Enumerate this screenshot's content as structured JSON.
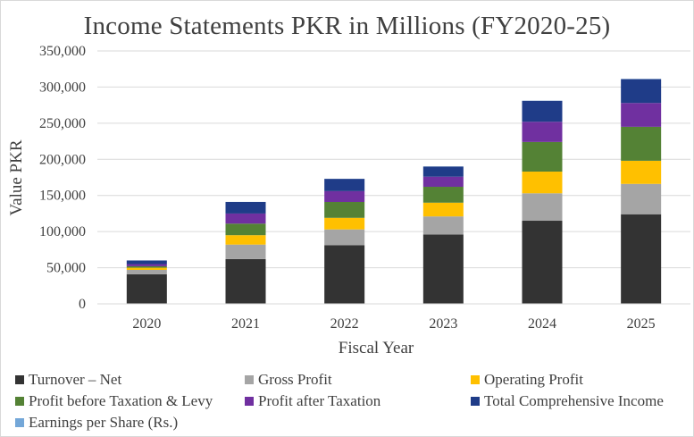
{
  "chart_data": {
    "type": "bar",
    "stacked": true,
    "title": "Income Statements PKR in Millions (FY2020-25)",
    "xlabel": "Fiscal Year",
    "ylabel": "Value PKR",
    "ylim": [
      0,
      350000
    ],
    "yticks": [
      0,
      50000,
      100000,
      150000,
      200000,
      250000,
      300000,
      350000
    ],
    "ytick_labels": [
      "0",
      "50,000",
      "100,000",
      "150,000",
      "200,000",
      "250,000",
      "300,000",
      "350,000"
    ],
    "grid": true,
    "legend_position": "bottom",
    "categories": [
      "2020",
      "2021",
      "2022",
      "2023",
      "2024",
      "2025"
    ],
    "series": [
      {
        "name": "Turnover – Net",
        "color": "#333333",
        "values": [
          41000,
          62000,
          81000,
          96000,
          115000,
          124000
        ]
      },
      {
        "name": "Gross Profit",
        "color": "#a5a5a5",
        "values": [
          6000,
          20000,
          22000,
          25000,
          38000,
          42000
        ]
      },
      {
        "name": "Operating Profit",
        "color": "#ffc000",
        "values": [
          3000,
          13000,
          16000,
          19000,
          30000,
          32000
        ]
      },
      {
        "name": "Profit before Taxation & Levy",
        "color": "#548235",
        "values": [
          2000,
          16000,
          22000,
          22000,
          41000,
          47000
        ]
      },
      {
        "name": "Profit after Taxation",
        "color": "#7030a0",
        "values": [
          3000,
          14000,
          15000,
          14000,
          28000,
          33000
        ]
      },
      {
        "name": "Total Comprehensive Income",
        "color": "#1f3c88",
        "values": [
          5000,
          16000,
          17000,
          14000,
          29000,
          33000
        ]
      },
      {
        "name": "Earnings per Share (Rs.)",
        "color": "#74a7d8",
        "values": [
          50,
          100,
          120,
          150,
          200,
          250
        ]
      }
    ]
  }
}
